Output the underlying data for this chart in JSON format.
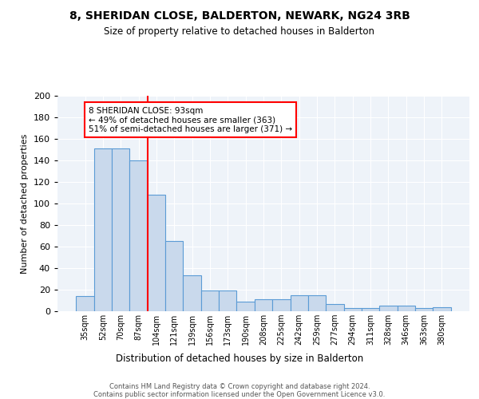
{
  "title": "8, SHERIDAN CLOSE, BALDERTON, NEWARK, NG24 3RB",
  "subtitle": "Size of property relative to detached houses in Balderton",
  "xlabel": "Distribution of detached houses by size in Balderton",
  "ylabel": "Number of detached properties",
  "bar_labels": [
    "35sqm",
    "52sqm",
    "70sqm",
    "87sqm",
    "104sqm",
    "121sqm",
    "139sqm",
    "156sqm",
    "173sqm",
    "190sqm",
    "208sqm",
    "225sqm",
    "242sqm",
    "259sqm",
    "277sqm",
    "294sqm",
    "311sqm",
    "328sqm",
    "346sqm",
    "363sqm",
    "380sqm"
  ],
  "bar_values": [
    14,
    151,
    151,
    140,
    108,
    65,
    33,
    19,
    19,
    9,
    11,
    11,
    15,
    15,
    7,
    3,
    3,
    5,
    5,
    3,
    4
  ],
  "bar_color": "#c9d9ec",
  "bar_edge_color": "#5b9bd5",
  "background_color": "#eef3f9",
  "vline_x_index": 3,
  "vline_color": "red",
  "annotation_text": "8 SHERIDAN CLOSE: 93sqm\n← 49% of detached houses are smaller (363)\n51% of semi-detached houses are larger (371) →",
  "annotation_box_color": "white",
  "annotation_box_edge_color": "red",
  "ylim": [
    0,
    200
  ],
  "yticks": [
    0,
    20,
    40,
    60,
    80,
    100,
    120,
    140,
    160,
    180,
    200
  ],
  "footer": "Contains HM Land Registry data © Crown copyright and database right 2024.\nContains public sector information licensed under the Open Government Licence v3.0."
}
